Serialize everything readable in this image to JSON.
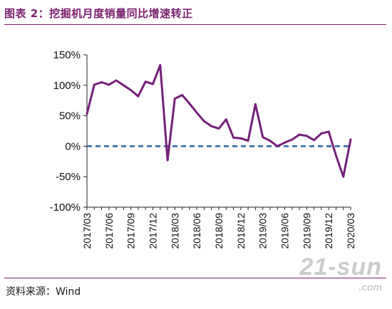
{
  "header": {
    "title": "图表 2：挖掘机月度销量同比增速转正"
  },
  "footer": {
    "source": "资料来源：Wind"
  },
  "watermark": {
    "main": "21-sun",
    "sub": ".com"
  },
  "colors": {
    "line": "#76207a",
    "zero_line": "#2f63a8",
    "title": "#7a1f6f"
  },
  "chart_data": {
    "type": "line",
    "title": "图表 2：挖掘机月度销量同比增速转正",
    "xlabel": "",
    "ylabel": "",
    "ylim": [
      -100,
      150
    ],
    "yticks": [
      150,
      100,
      50,
      0,
      -50,
      -100
    ],
    "ytick_labels": [
      "150%",
      "100%",
      "50%",
      "0%",
      "-50%",
      "-100%"
    ],
    "xtick_labels": [
      "2017/03",
      "2017/06",
      "2017/09",
      "2017/12",
      "2018/03",
      "2018/06",
      "2018/09",
      "2018/12",
      "2019/03",
      "2019/06",
      "2019/09",
      "2019/12",
      "2020/03"
    ],
    "grid": false,
    "reference_line": {
      "y": 0,
      "style": "dashed"
    },
    "series": [
      {
        "values": [
          {
            "x": "2017/03",
            "y": 53
          },
          {
            "x": "2017/04",
            "y": 101
          },
          {
            "x": "2017/05",
            "y": 105
          },
          {
            "x": "2017/06",
            "y": 101
          },
          {
            "x": "2017/07",
            "y": 108
          },
          {
            "x": "2017/08",
            "y": 100
          },
          {
            "x": "2017/09",
            "y": 92
          },
          {
            "x": "2017/10",
            "y": 82
          },
          {
            "x": "2017/11",
            "y": 106
          },
          {
            "x": "2017/12",
            "y": 102
          },
          {
            "x": "2018/01",
            "y": 133
          },
          {
            "x": "2018/02",
            "y": -23
          },
          {
            "x": "2018/03",
            "y": 78
          },
          {
            "x": "2018/04",
            "y": 84
          },
          {
            "x": "2018/05",
            "y": 70
          },
          {
            "x": "2018/06",
            "y": 55
          },
          {
            "x": "2018/07",
            "y": 41
          },
          {
            "x": "2018/08",
            "y": 33
          },
          {
            "x": "2018/09",
            "y": 29
          },
          {
            "x": "2018/10",
            "y": 44
          },
          {
            "x": "2018/11",
            "y": 14
          },
          {
            "x": "2018/12",
            "y": 13
          },
          {
            "x": "2019/01",
            "y": 9
          },
          {
            "x": "2019/02",
            "y": 69
          },
          {
            "x": "2019/03",
            "y": 15
          },
          {
            "x": "2019/04",
            "y": 9
          },
          {
            "x": "2019/05",
            "y": 0
          },
          {
            "x": "2019/06",
            "y": 6
          },
          {
            "x": "2019/07",
            "y": 11
          },
          {
            "x": "2019/08",
            "y": 19
          },
          {
            "x": "2019/09",
            "y": 17
          },
          {
            "x": "2019/10",
            "y": 10
          },
          {
            "x": "2019/11",
            "y": 21
          },
          {
            "x": "2019/12",
            "y": 24
          },
          {
            "x": "2020/01",
            "y": -15
          },
          {
            "x": "2020/02",
            "y": -50
          },
          {
            "x": "2020/03",
            "y": 11
          }
        ]
      }
    ]
  }
}
